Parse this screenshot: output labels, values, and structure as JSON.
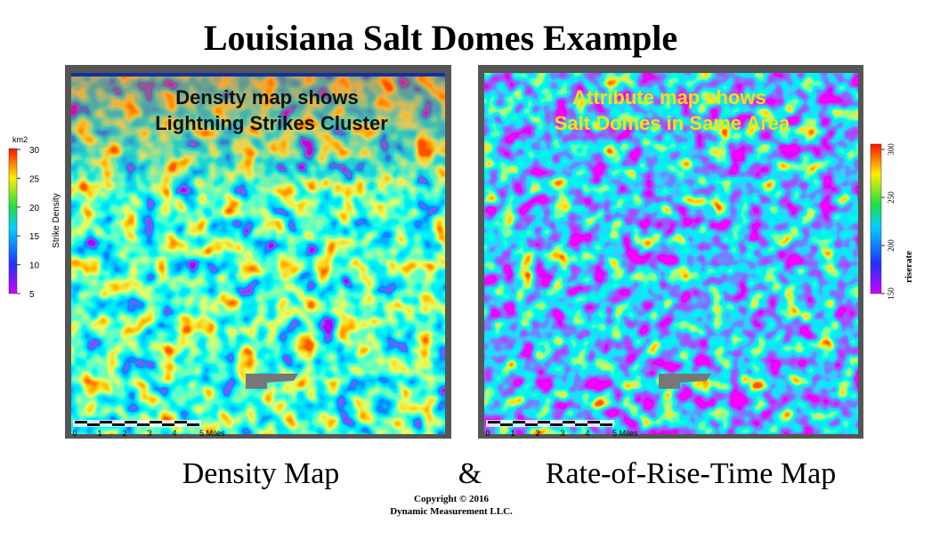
{
  "title": "Louisiana Salt Domes Example",
  "maps": [
    {
      "overlay": [
        "Density map shows",
        "Lightning Strikes Cluster"
      ],
      "caption": "Density Map",
      "scale_labels": [
        "0",
        "1",
        "2",
        "3",
        "4",
        "5 Miles"
      ],
      "legend": {
        "unit": "km2",
        "label": "Strike Density",
        "ticks": [
          30,
          25,
          20,
          15,
          10,
          5
        ]
      }
    },
    {
      "overlay": [
        "Attribute map shows",
        "Salt Domes in Same Area"
      ],
      "caption": "Rate-of-Rise-Time Map",
      "scale_labels": [
        "0",
        "1",
        "2",
        "3",
        "4",
        "5 Miles"
      ],
      "legend": {
        "label": "riserate",
        "ticks": [
          300,
          250,
          200,
          150
        ]
      }
    }
  ],
  "ampersand": "&",
  "copyright": [
    "Copyright © 2016",
    "Dynamic Measurement LLC."
  ]
}
